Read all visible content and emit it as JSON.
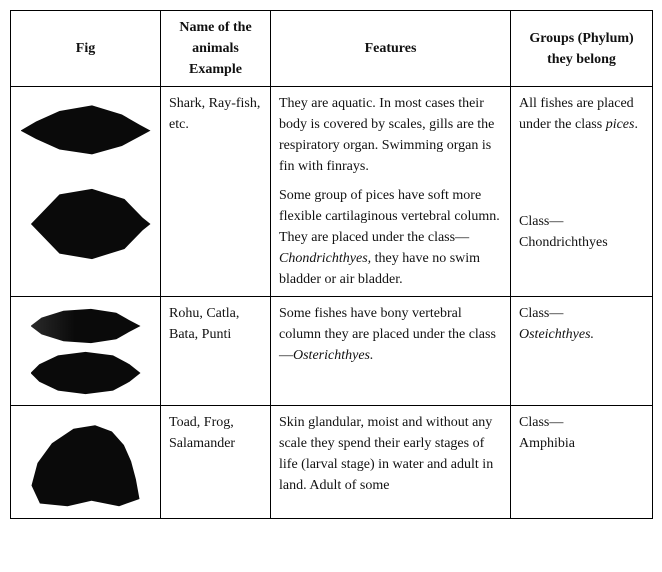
{
  "headers": {
    "fig": "Fig",
    "name": "Name of the animals Example",
    "features": "Features",
    "groups": "Groups (Phylum) they belong"
  },
  "rows": [
    {
      "name": "Shark, Ray-fish, etc.",
      "features_1": "They are aquatic. In most cases their body is covered by scales, gills are the respiratory organ. Swimming organ is fin with finrays.",
      "features_2a": "Some group of pices have soft more flexible cartilaginous vertebral column. They are placed under the class—",
      "features_2b": "Chondrichthyes,",
      "features_2c": " they have no swim bladder or air bladder.",
      "group_1a": "All fishes are placed under the class ",
      "group_1b": "pices",
      "group_1c": ".",
      "group_2a": "Class—",
      "group_2b": "Chondrichthyes"
    },
    {
      "name": "Rohu, Catla, Bata, Punti",
      "features_a": "Some fishes have bony vertebral column they are placed under the class—",
      "features_b": "Osterichthyes.",
      "group_a": "Class—",
      "group_b": "Osteichthyes."
    },
    {
      "name": "Toad, Frog, Salamander",
      "features": "Skin glandular, moist and without any scale they spend their early stages of life (larval stage) in water and adult in land. Adult of some",
      "group_a": "Class—",
      "group_b": "Amphibia"
    }
  ]
}
